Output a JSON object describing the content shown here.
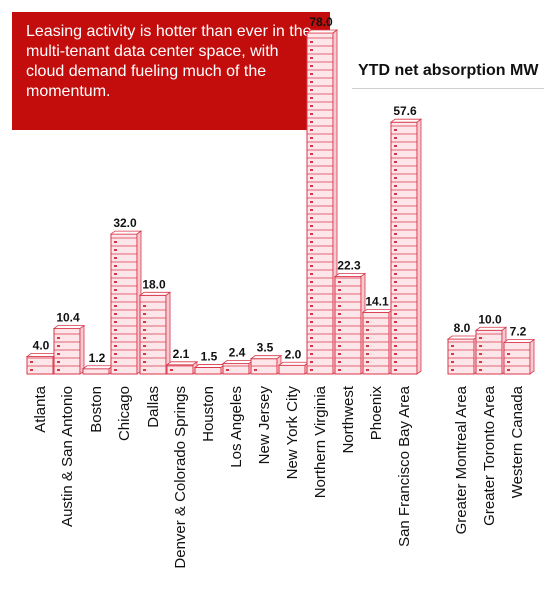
{
  "callout": {
    "text": "Leasing activity is hotter than ever in the multi-tenant data center space, with cloud demand fueling much of the momentum."
  },
  "colors": {
    "callout_bg": "#c30d0d",
    "bar_stroke": "#d9364a",
    "bar_fill": "#fde6ea"
  },
  "chart_data": {
    "type": "bar",
    "title": "YTD net absorption MW",
    "xlabel": "",
    "ylabel": "",
    "ylim": [
      0,
      80
    ],
    "grid": false,
    "legend": "none",
    "categories": [
      "Atlanta",
      "Austin & San Antonio",
      "Boston",
      "Chicago",
      "Dallas",
      "Denver & Colorado Springs",
      "Houston",
      "Los Angeles",
      "New Jersey",
      "New York City",
      "Northern Virginia",
      "Northwest",
      "Phoenix",
      "San Francisco Bay Area",
      "Greater Montreal Area",
      "Greater Toronto Area",
      "Western Canada"
    ],
    "values": [
      4.0,
      10.4,
      1.2,
      32.0,
      18.0,
      2.1,
      1.5,
      2.4,
      3.5,
      2.0,
      78.0,
      22.3,
      14.1,
      57.6,
      8.0,
      10.0,
      7.2
    ],
    "value_labels": [
      "4.0",
      "10.4",
      "1.2",
      "32.0",
      "18.0",
      "2.1",
      "1.5",
      "2.4",
      "3.5",
      "2.0",
      "78.0",
      "22.3",
      "14.1",
      "57.6",
      "8.0",
      "10.0",
      "7.2"
    ]
  }
}
